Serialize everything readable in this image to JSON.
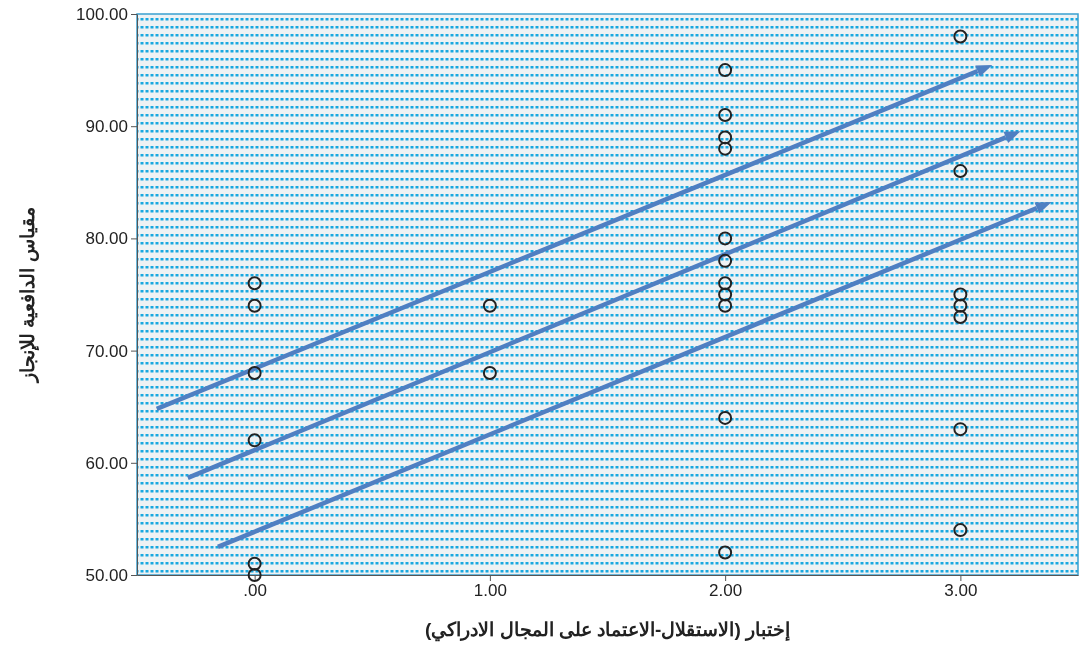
{
  "chart_data": {
    "type": "scatter",
    "xlabel": "إختبار (الاستقلال-الاعتماد على المجال الادراكي)",
    "ylabel": "مقياس الدافعية للإنجاز",
    "marker": "circle",
    "xlim": [
      -0.5,
      3.5
    ],
    "ylim": [
      50,
      100
    ],
    "xticks": [
      {
        "value": 0,
        "label": ".00"
      },
      {
        "value": 1,
        "label": "1.00"
      },
      {
        "value": 2,
        "label": "2.00"
      },
      {
        "value": 3,
        "label": "3.00"
      }
    ],
    "yticks": [
      {
        "value": 50,
        "label": "50.00"
      },
      {
        "value": 60,
        "label": "60.00"
      },
      {
        "value": 70,
        "label": "70.00"
      },
      {
        "value": 80,
        "label": "80.00"
      },
      {
        "value": 90,
        "label": "90.00"
      },
      {
        "value": 100,
        "label": "100.00"
      }
    ],
    "series": [
      {
        "color": "#222222",
        "x": [
          0,
          0,
          0,
          0,
          0,
          0,
          1,
          1,
          2,
          2,
          2,
          2,
          2,
          2,
          2,
          2,
          2,
          2,
          2,
          3,
          3,
          3,
          3,
          3,
          3,
          3
        ],
        "values": [
          76,
          74,
          68,
          62,
          51,
          50,
          74,
          68,
          95,
          91,
          89,
          88,
          80,
          78,
          76,
          75,
          74,
          64,
          52,
          98,
          86,
          75,
          74,
          73,
          63,
          54
        ]
      }
    ]
  }
}
